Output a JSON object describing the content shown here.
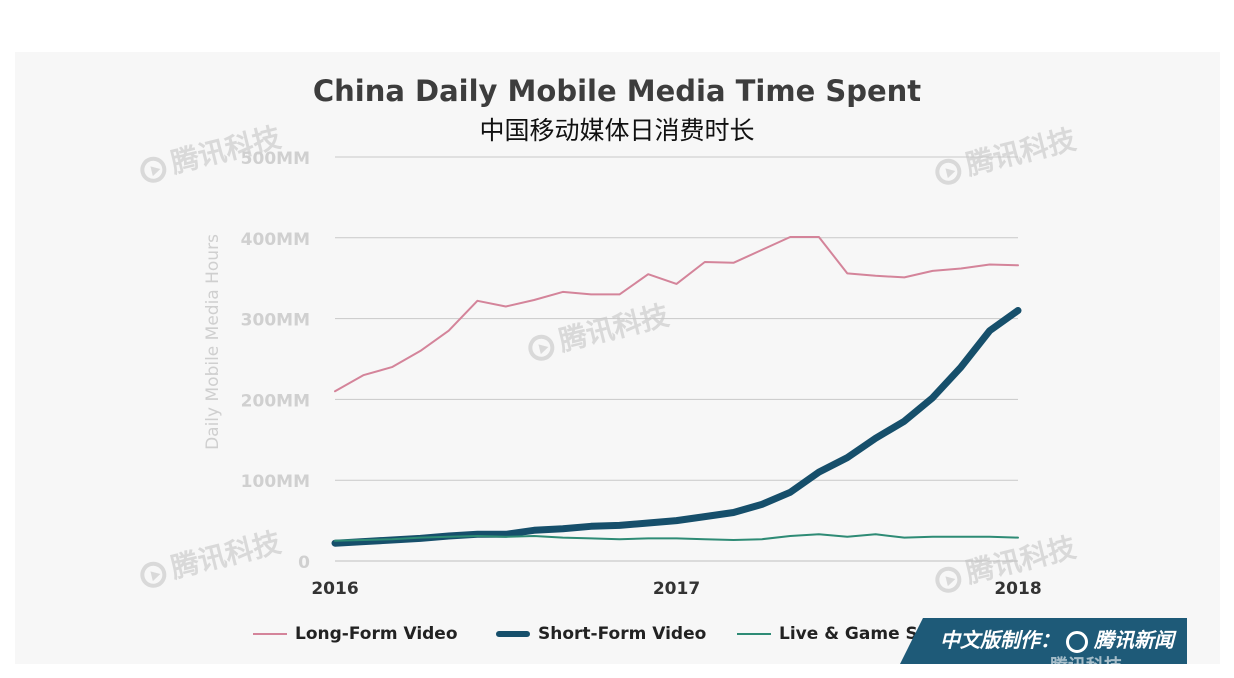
{
  "chart_data": {
    "type": "line",
    "title": "China Daily Mobile Media Time Spent",
    "subtitle": "中国移动媒体日消费时长",
    "ylabel": "Daily Mobile Media Hours",
    "xlabel": "",
    "ylim": [
      0,
      500
    ],
    "yticks": [
      {
        "value": 0,
        "label": "0"
      },
      {
        "value": 100,
        "label": "100MM"
      },
      {
        "value": 200,
        "label": "200MM"
      },
      {
        "value": 300,
        "label": "300MM"
      },
      {
        "value": 400,
        "label": "400MM"
      },
      {
        "value": 500,
        "label": "500MM"
      }
    ],
    "xlim": [
      2016,
      2018
    ],
    "xticks": [
      {
        "value": 2016,
        "label": "2016"
      },
      {
        "value": 2017,
        "label": "2017"
      },
      {
        "value": 2018,
        "label": "2018"
      }
    ],
    "x": [
      2016.0,
      2016.083,
      2016.167,
      2016.25,
      2016.333,
      2016.417,
      2016.5,
      2016.583,
      2016.667,
      2016.75,
      2016.833,
      2016.917,
      2017.0,
      2017.083,
      2017.167,
      2017.25,
      2017.333,
      2017.417,
      2017.5,
      2017.583,
      2017.667,
      2017.75,
      2017.833,
      2017.917,
      2018.0
    ],
    "series": [
      {
        "name": "Long-Form Video",
        "color": "#d4849a",
        "width": 2,
        "values": [
          210,
          230,
          240,
          260,
          285,
          322,
          315,
          323,
          333,
          330,
          330,
          355,
          343,
          370,
          369,
          385,
          401,
          401,
          356,
          353,
          351,
          359,
          362,
          367,
          366
        ]
      },
      {
        "name": "Short-Form Video",
        "color": "#164f6b",
        "width": 7,
        "values": [
          22,
          24,
          26,
          28,
          31,
          33,
          33,
          38,
          40,
          43,
          44,
          47,
          50,
          55,
          60,
          70,
          85,
          110,
          128,
          152,
          173,
          202,
          240,
          285,
          310
        ]
      },
      {
        "name": "Live & Game Streaming",
        "color": "#2e8b75",
        "width": 2,
        "values": [
          25,
          26,
          27,
          29,
          30,
          31,
          30,
          31,
          29,
          28,
          27,
          28,
          28,
          27,
          26,
          27,
          31,
          33,
          30,
          33,
          29,
          30,
          30,
          30,
          29
        ]
      }
    ]
  },
  "watermark_text": "腾讯科技",
  "badge": {
    "text_prefix": "中文版制作：",
    "brand": "腾讯新闻",
    "sub": "腾讯科技"
  },
  "legend": {
    "items": [
      {
        "label": "Long-Form Video",
        "color": "#d4849a"
      },
      {
        "label": "Short-Form Video",
        "color": "#164f6b"
      },
      {
        "label": "Live & Game Streaming",
        "color": "#2e8b75"
      }
    ]
  }
}
